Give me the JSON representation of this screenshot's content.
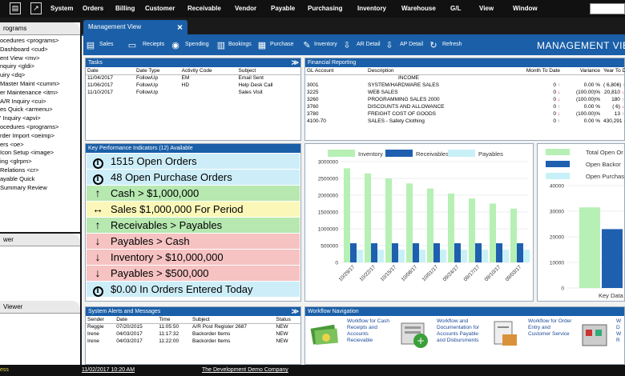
{
  "menubar": {
    "items": [
      "System",
      "Orders",
      "Billing",
      "Customer",
      "Receivable",
      "Vendor",
      "Payable",
      "Purchasing",
      "Inventory",
      "Warehouse",
      "G/L",
      "View",
      "Window"
    ]
  },
  "left_panel": {
    "title": "rograms",
    "items": [
      "ocedures <programs>",
      "Dashboard <cud>",
      "ent View <mv>",
      "nquiry <gldi>",
      "uiry <dq>",
      "Master Maint <cumm>",
      "er Maintenance <itm>",
      "A/R Inquiry <cui>",
      "es Quick <armenu>",
      "' Inquiry <apvi>",
      "ocedures <programs>",
      "rder Import <oeimp>",
      "ers <oe>",
      "Icon Setup <image>",
      "ing <glrpm>",
      "Relations <cr>",
      "ayable Quick",
      "Summary Review"
    ],
    "viewer1_title": "wer",
    "viewer2_title": "Viewer"
  },
  "tab": {
    "title": "Management View",
    "close": "×"
  },
  "toolbar": {
    "items": [
      "Sales",
      "Reciepts",
      "Spending",
      "Bookings",
      "Purchase",
      "Inventory",
      "AR Detail",
      "AP Detail",
      "Refresh"
    ],
    "heading": "MANAGEMENT VIEW"
  },
  "tasks": {
    "title": "Tasks",
    "headers": [
      "Date",
      "Date Type",
      "Activity Code",
      "Subject"
    ],
    "rows": [
      [
        "11/04/2017",
        "FollowUp",
        "EM",
        "Email Sent"
      ],
      [
        "11/06/2017",
        "FollowUp",
        "HD",
        "Help Desk Call"
      ],
      [
        "11/10/2017",
        "FollowUp",
        "",
        "Sales Visit"
      ]
    ]
  },
  "financial": {
    "title": "Financial Reporting",
    "headers": [
      "GL Account",
      "Description",
      "Month To Date",
      "Variance",
      "Year To Date"
    ],
    "section": "INCOME",
    "rows": [
      {
        "acct": "3001",
        "desc": "SYSTEM/HARDWARE SALES",
        "mtd": "0",
        "mtd_dir": "up",
        "var": "0.00 %",
        "ytd": "( 6,806)",
        "ytd_dir": "up"
      },
      {
        "acct": "3225",
        "desc": "WEB SALES",
        "mtd": "0",
        "mtd_dir": "dn",
        "var": "(100.00)%",
        "ytd": "20,810",
        "ytd_dir": "dn"
      },
      {
        "acct": "3260",
        "desc": "PROGRAMMING SALES 2000",
        "mtd": "0",
        "mtd_dir": "dn",
        "var": "(100.00)%",
        "ytd": "180",
        "ytd_dir": "up"
      },
      {
        "acct": "3760",
        "desc": "DISCOUNTS AND ALLOWANCE",
        "mtd": "0",
        "mtd_dir": "up",
        "var": "0.00 %",
        "ytd": "( 6)",
        "ytd_dir": "dn"
      },
      {
        "acct": "3780",
        "desc": "FREIGHT COST OF GOODS",
        "mtd": "0",
        "mtd_dir": "dn",
        "var": "(100.00)%",
        "ytd": "13",
        "ytd_dir": "up"
      },
      {
        "acct": "4100-70",
        "desc": "SALES - Safety Clothing",
        "mtd": "0",
        "mtd_dir": "up",
        "var": "0.00 %",
        "ytd": "430,291",
        "ytd_dir": "up"
      }
    ]
  },
  "kpi": {
    "title": "Key Performance Indicators (12) Available",
    "items": [
      {
        "icon": "info-icon",
        "text": "1515 Open Orders",
        "color": "blue"
      },
      {
        "icon": "info-icon",
        "text": "48 Open Purchase Orders",
        "color": "blue"
      },
      {
        "icon": "up-arrow-icon",
        "text": "Cash > $1,000,000",
        "color": "green"
      },
      {
        "icon": "left-right-arrow-icon",
        "text": "Sales $1,000,000 For Period",
        "color": "yellow"
      },
      {
        "icon": "up-arrow-icon",
        "text": "Receivables > Payables",
        "color": "green"
      },
      {
        "icon": "down-arrow-icon",
        "text": "Payables > Cash",
        "color": "red"
      },
      {
        "icon": "down-arrow-icon",
        "text": "Inventory > $10,000,000",
        "color": "red"
      },
      {
        "icon": "down-arrow-icon",
        "text": "Payables > $500,000",
        "color": "red"
      },
      {
        "icon": "info-icon",
        "text": "$0.00 In Orders Entered Today",
        "color": "blue"
      }
    ]
  },
  "chart_data": [
    {
      "type": "bar",
      "categories": [
        "10/29/17",
        "10/22/17",
        "10/15/17",
        "10/08/17",
        "10/01/17",
        "09/24/17",
        "09/17/17",
        "09/10/17",
        "09/03/17"
      ],
      "series": [
        {
          "name": "Inventory",
          "color": "#b6f0b4",
          "values": [
            2800000,
            2650000,
            2500000,
            2350000,
            2200000,
            2050000,
            1900000,
            1750000,
            1600000
          ]
        },
        {
          "name": "Receivables",
          "color": "#1f5fb0",
          "values": [
            570000,
            570000,
            570000,
            570000,
            570000,
            570000,
            570000,
            570000,
            570000
          ]
        },
        {
          "name": "Payables",
          "color": "#c8f1f7",
          "values": [
            380000,
            380000,
            380000,
            380000,
            380000,
            380000,
            380000,
            380000,
            380000
          ]
        }
      ],
      "yticks": [
        "3000000",
        "2500000",
        "2000000",
        "1500000",
        "1000000",
        "500000",
        "0"
      ],
      "ylim": [
        0,
        3000000
      ],
      "legend": "top"
    },
    {
      "type": "bar",
      "categories": [
        "Key Data"
      ],
      "series": [
        {
          "name": "Total Open Or",
          "color": "#b6f0b4",
          "values": [
            31500
          ]
        },
        {
          "name": "Open Backor",
          "color": "#1f5fb0",
          "values": [
            23000
          ]
        },
        {
          "name": "Open Purchase Or",
          "color": "#c8f1f7",
          "values": [
            0
          ]
        }
      ],
      "yticks": [
        "40000",
        "30000",
        "20000",
        "10000",
        "0"
      ],
      "ylim": [
        0,
        40000
      ],
      "xlabel": "Key Data",
      "legend": "top"
    }
  ],
  "alerts": {
    "title": "System Alerts and Messages",
    "headers": [
      "Sender",
      "Date",
      "Time",
      "Subject",
      "Status"
    ],
    "rows": [
      [
        "Reggie",
        "07/20/2015",
        "11:05:50",
        "A/R Post Register 2687",
        "NEW"
      ],
      [
        "Irene",
        "04/03/2017",
        "11:17:32",
        "Backorder Items",
        "NEW"
      ],
      [
        "Irene",
        "04/03/2017",
        "11:22:00",
        "Backorder Items",
        "NEW"
      ]
    ]
  },
  "workflow": {
    "title": "Workflow Navigation",
    "items": [
      {
        "l1": "Workflow for Cash",
        "l2": "Receipts and",
        "l3": "Accounts",
        "l4": "Recievable"
      },
      {
        "l1": "Workflow and",
        "l2": "Documentation for",
        "l3": "Accounts Payable",
        "l4": "and Disbursments"
      },
      {
        "l1": "Workflow for Order",
        "l2": "Entry and",
        "l3": "Customer Service",
        "l4": ""
      },
      {
        "l1": "W",
        "l2": "D",
        "l3": "W",
        "l4": "R"
      }
    ]
  },
  "statusbar": {
    "left": "ess",
    "datetime": "11/02/2017  10:20 AM",
    "company": "The Development Demo Company"
  }
}
